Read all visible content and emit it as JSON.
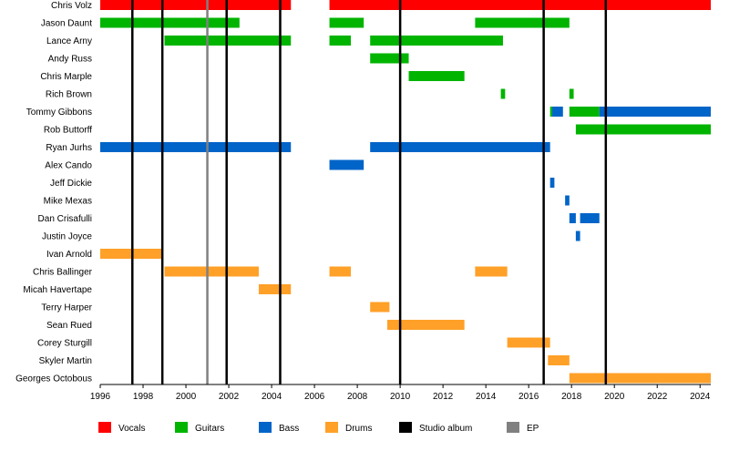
{
  "chart_data": {
    "type": "timeline",
    "xlim": [
      1996,
      2024.5
    ],
    "x_ticks": [
      1996,
      1998,
      2000,
      2002,
      2004,
      2006,
      2008,
      2010,
      2012,
      2014,
      2016,
      2018,
      2020,
      2022,
      2024
    ],
    "members": [
      "Chris Volz",
      "Jason Daunt",
      "Lance Arny",
      "Andy Russ",
      "Chris Marple",
      "Rich Brown",
      "Tommy Gibbons",
      "Rob Buttorff",
      "Ryan Jurhs",
      "Alex Cando",
      "Jeff Dickie",
      "Mike Mexas",
      "Dan Crisafulli",
      "Justin Joyce",
      "Ivan Arnold",
      "Chris Ballinger",
      "Micah Havertape",
      "Terry Harper",
      "Sean Rued",
      "Corey Sturgill",
      "Skyler Martin",
      "Georges Octobous"
    ],
    "roles": {
      "Vocals": {
        "color": "#ff0000"
      },
      "Guitars": {
        "color": "#00b400"
      },
      "Bass": {
        "color": "#0064c8"
      },
      "Drums": {
        "color": "#ffa028"
      }
    },
    "bars": [
      {
        "member": "Chris Volz",
        "role": "Vocals",
        "start": 1996.0,
        "end": 2004.9
      },
      {
        "member": "Chris Volz",
        "role": "Vocals",
        "start": 2006.7,
        "end": 2024.5
      },
      {
        "member": "Jason Daunt",
        "role": "Guitars",
        "start": 1996.0,
        "end": 2002.5
      },
      {
        "member": "Jason Daunt",
        "role": "Guitars",
        "start": 2006.7,
        "end": 2008.3
      },
      {
        "member": "Jason Daunt",
        "role": "Guitars",
        "start": 2013.5,
        "end": 2017.9
      },
      {
        "member": "Lance Arny",
        "role": "Guitars",
        "start": 1999.0,
        "end": 2004.9
      },
      {
        "member": "Lance Arny",
        "role": "Guitars",
        "start": 2006.7,
        "end": 2007.7
      },
      {
        "member": "Lance Arny",
        "role": "Guitars",
        "start": 2008.6,
        "end": 2014.8
      },
      {
        "member": "Andy Russ",
        "role": "Guitars",
        "start": 2008.6,
        "end": 2010.4
      },
      {
        "member": "Chris Marple",
        "role": "Guitars",
        "start": 2010.4,
        "end": 2013.0
      },
      {
        "member": "Rich Brown",
        "role": "Guitars",
        "start": 2014.7,
        "end": 2014.9
      },
      {
        "member": "Rich Brown",
        "role": "Guitars",
        "start": 2017.9,
        "end": 2018.1
      },
      {
        "member": "Tommy Gibbons",
        "role": "Guitars",
        "start": 2017.0,
        "end": 2017.1
      },
      {
        "member": "Tommy Gibbons",
        "role": "Bass",
        "start": 2017.1,
        "end": 2017.6
      },
      {
        "member": "Tommy Gibbons",
        "role": "Guitars",
        "start": 2017.9,
        "end": 2019.3
      },
      {
        "member": "Tommy Gibbons",
        "role": "Bass",
        "start": 2019.3,
        "end": 2024.5
      },
      {
        "member": "Rob Buttorff",
        "role": "Guitars",
        "start": 2018.2,
        "end": 2024.5
      },
      {
        "member": "Ryan Jurhs",
        "role": "Bass",
        "start": 1996.0,
        "end": 2004.9
      },
      {
        "member": "Ryan Jurhs",
        "role": "Bass",
        "start": 2008.6,
        "end": 2017.0
      },
      {
        "member": "Alex Cando",
        "role": "Bass",
        "start": 2006.7,
        "end": 2008.3
      },
      {
        "member": "Jeff Dickie",
        "role": "Bass",
        "start": 2017.0,
        "end": 2017.2
      },
      {
        "member": "Mike Mexas",
        "role": "Bass",
        "start": 2017.7,
        "end": 2017.9
      },
      {
        "member": "Dan Crisafulli",
        "role": "Bass",
        "start": 2017.9,
        "end": 2018.2
      },
      {
        "member": "Dan Crisafulli",
        "role": "Bass",
        "start": 2018.4,
        "end": 2019.3
      },
      {
        "member": "Justin Joyce",
        "role": "Bass",
        "start": 2018.2,
        "end": 2018.4
      },
      {
        "member": "Ivan Arnold",
        "role": "Drums",
        "start": 1996.0,
        "end": 1998.9
      },
      {
        "member": "Chris Ballinger",
        "role": "Drums",
        "start": 1999.0,
        "end": 2003.4
      },
      {
        "member": "Chris Ballinger",
        "role": "Drums",
        "start": 2006.7,
        "end": 2007.7
      },
      {
        "member": "Chris Ballinger",
        "role": "Drums",
        "start": 2013.5,
        "end": 2015.0
      },
      {
        "member": "Micah Havertape",
        "role": "Drums",
        "start": 2003.4,
        "end": 2004.9
      },
      {
        "member": "Terry Harper",
        "role": "Drums",
        "start": 2008.6,
        "end": 2009.5
      },
      {
        "member": "Sean Rued",
        "role": "Drums",
        "start": 2009.4,
        "end": 2013.0
      },
      {
        "member": "Corey Sturgill",
        "role": "Drums",
        "start": 2015.0,
        "end": 2017.0
      },
      {
        "member": "Skyler Martin",
        "role": "Drums",
        "start": 2016.9,
        "end": 2017.9
      },
      {
        "member": "Georges Octobous",
        "role": "Drums",
        "start": 2017.9,
        "end": 2024.5
      }
    ],
    "studio_albums": [
      1997.5,
      1998.9,
      2001.9,
      2004.4,
      2010.0,
      2016.7,
      2019.6
    ],
    "eps": [
      2001.0
    ],
    "legend": [
      {
        "label": "Vocals",
        "color": "#ff0000"
      },
      {
        "label": "Guitars",
        "color": "#00b400"
      },
      {
        "label": "Bass",
        "color": "#0064c8"
      },
      {
        "label": "Drums",
        "color": "#ffa028"
      },
      {
        "label": "Studio album",
        "color": "#000000"
      },
      {
        "label": "EP",
        "color": "#808080"
      }
    ]
  }
}
